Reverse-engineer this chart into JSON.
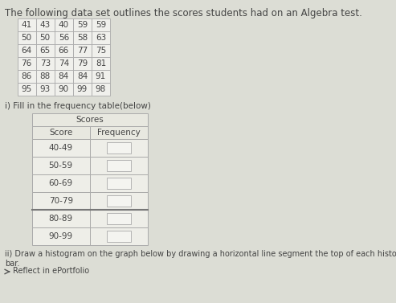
{
  "title_text": "The following data set outlines the scores students had on an Algebra test.",
  "data_grid": [
    [
      41,
      43,
      40,
      59,
      59
    ],
    [
      50,
      50,
      56,
      58,
      63
    ],
    [
      64,
      65,
      66,
      77,
      75
    ],
    [
      76,
      73,
      74,
      79,
      81
    ],
    [
      86,
      88,
      84,
      84,
      91
    ],
    [
      95,
      93,
      90,
      99,
      98
    ]
  ],
  "freq_table_header": "Scores",
  "freq_col1_header": "Score",
  "freq_col2_header": "Frequency",
  "score_ranges": [
    "40-49",
    "50-59",
    "60-69",
    "70-79",
    "80-89",
    "90-99"
  ],
  "instruction1": "i) Fill in the frequency table(below)",
  "instruction2": "ii) Draw a histogram on the graph below by drawing a horizontal line segment the top of each histogram\nbar.",
  "reflect_text": "Reflect in ePortfolio",
  "bg_color": "#dcddd5",
  "cell_bg": "#f0f0ec",
  "freq_header_bg": "#e8e8e0",
  "freq_row_bg": "#eeeee8",
  "answer_box_bg": "#f4f4f0",
  "text_color": "#444444",
  "border_color": "#aaaaaa",
  "thick_border_color": "#777777",
  "title_fontsize": 8.5,
  "body_fontsize": 7.5,
  "small_fontsize": 7
}
